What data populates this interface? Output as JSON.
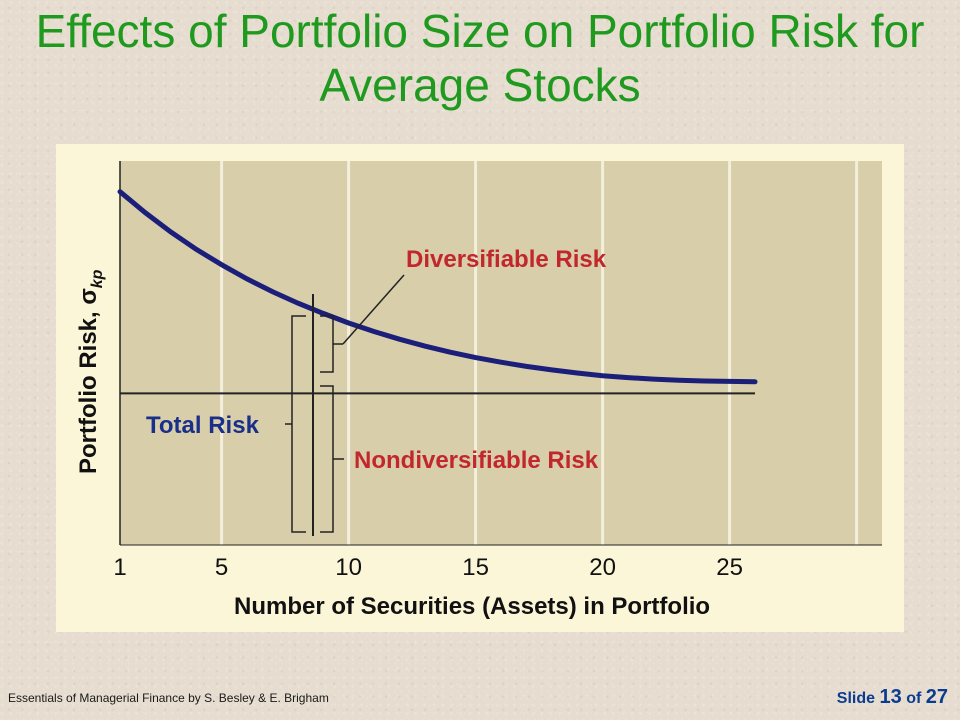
{
  "slide": {
    "title": "Effects of Portfolio Size on Portfolio Risk for Average Stocks",
    "footer": "Essentials of Managerial Finance by S. Besley & E. Brigham",
    "slide_word": "Slide",
    "slide_number": "13",
    "of_word": "of",
    "total_slides": "27"
  },
  "colors": {
    "title": "#1f9a1f",
    "curve": "#1c1f7a",
    "plot_bg": "#d8ceaa",
    "panel_bg": "#fbf6d8",
    "red_label": "#c1272d",
    "blue_label": "#1a2f8a"
  },
  "chart_data": {
    "type": "line",
    "xlabel": "Number of Securities (Assets) in Portfolio",
    "ylabel_main": "Portfolio Risk, σ",
    "ylabel_sub": "kp",
    "x_ticks": [
      1,
      5,
      10,
      15,
      20,
      25
    ],
    "xlim": [
      1,
      31
    ],
    "ylim": [
      0,
      100
    ],
    "grid": true,
    "series": [
      {
        "x": [
          1,
          2,
          3,
          4,
          5,
          6,
          7,
          8,
          9,
          10,
          11,
          12,
          13,
          14,
          15,
          16,
          17,
          18,
          19,
          20,
          21,
          22,
          23,
          24,
          25,
          26
        ],
        "values": [
          92,
          86.5,
          81.5,
          77,
          73,
          69.3,
          66,
          63,
          60.3,
          57.8,
          55.6,
          53.6,
          51.8,
          50.2,
          48.8,
          47.6,
          46.5,
          45.6,
          44.8,
          44.1,
          43.6,
          43.2,
          42.9,
          42.7,
          42.6,
          42.5
        ]
      }
    ],
    "market_risk_level": 39.5,
    "annotations": {
      "diversifiable": "Diversifiable Risk",
      "nondiversifiable": "Nondiversifiable Risk",
      "total": "Total Risk"
    }
  }
}
